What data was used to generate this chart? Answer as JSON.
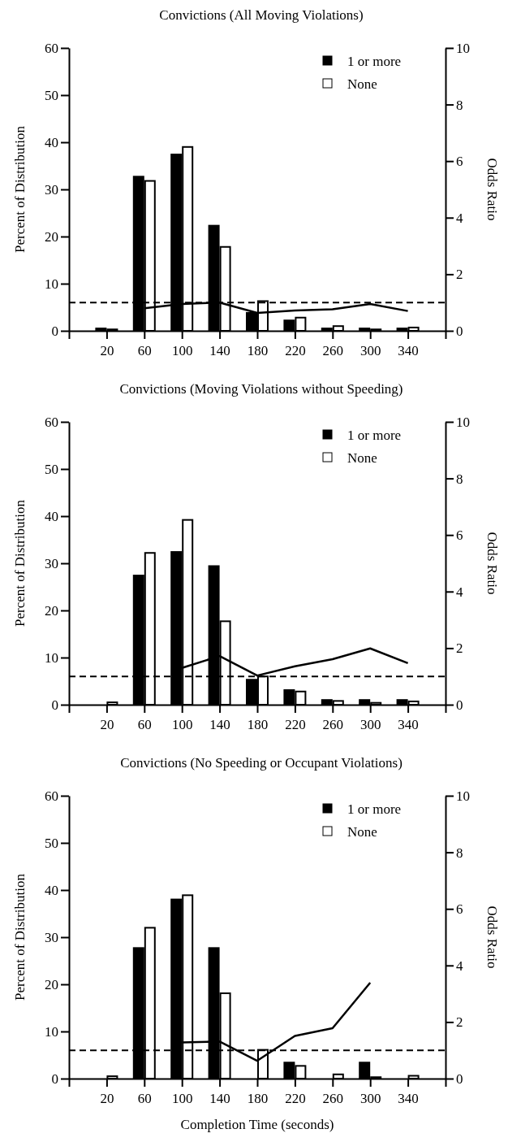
{
  "chart_data": [
    {
      "type": "bar",
      "title": "Convictions (All Moving Violations)",
      "ylabel": "Percent of Distribution",
      "y2label": "Odds Ratio",
      "categories": [
        "20",
        "60",
        "100",
        "140",
        "180",
        "220",
        "260",
        "300",
        "340"
      ],
      "series": [
        {
          "name": "1 or more",
          "color": "#000000",
          "values": [
            0.5,
            32.7,
            37.4,
            22.3,
            3.8,
            2.2,
            0.5,
            0.5,
            0.5
          ]
        },
        {
          "name": "None",
          "color": "#ffffff",
          "values": [
            0.3,
            31.8,
            39,
            17.8,
            6.3,
            2.8,
            1.0,
            0.3,
            0.7
          ]
        },
        {
          "type": "line",
          "axis": "y2",
          "color": "#000000",
          "values": [
            null,
            0.8,
            0.95,
            1.0,
            0.63,
            0.72,
            0.76,
            0.95,
            0.7
          ]
        }
      ],
      "ylim": [
        0,
        60
      ],
      "yticks": [
        0,
        10,
        20,
        30,
        40,
        50,
        60
      ],
      "y2lim": [
        0,
        10
      ],
      "y2ticks": [
        0,
        2,
        4,
        6,
        8,
        10
      ],
      "ref_lines": [
        {
          "axis": "y2",
          "value": 1,
          "label": null,
          "color": "#000000",
          "line_style": "dashed"
        }
      ],
      "legend": "top right",
      "grid": false,
      "marker": "none"
    },
    {
      "type": "bar",
      "title": "Convictions (Moving Violations without Speeding)",
      "ylabel": "Percent of Distribution",
      "y2label": "Odds Ratio",
      "categories": [
        "20",
        "60",
        "100",
        "140",
        "180",
        "220",
        "260",
        "300",
        "340"
      ],
      "series": [
        {
          "name": "1 or more",
          "color": "#000000",
          "values": [
            0,
            27.4,
            32.4,
            29.4,
            5.3,
            3.1,
            1.0,
            1.0,
            1.0
          ]
        },
        {
          "name": "None",
          "color": "#ffffff",
          "values": [
            0.5,
            32.2,
            39.2,
            17.7,
            6.0,
            2.8,
            0.8,
            0.4,
            0.7
          ]
        },
        {
          "type": "line",
          "axis": "y2",
          "color": "#000000",
          "values": [
            null,
            null,
            1.3,
            1.72,
            1.03,
            1.36,
            1.61,
            1.99,
            1.47
          ]
        }
      ],
      "ylim": [
        0,
        60
      ],
      "yticks": [
        0,
        10,
        20,
        30,
        40,
        50,
        60
      ],
      "y2lim": [
        0,
        10
      ],
      "y2ticks": [
        0,
        2,
        4,
        6,
        8,
        10
      ],
      "ref_lines": [
        {
          "axis": "y2",
          "value": 1,
          "label": null,
          "color": "#000000",
          "line_style": "dashed"
        }
      ],
      "legend": "top right",
      "grid": false,
      "marker": "none"
    },
    {
      "type": "bar",
      "title": "Convictions (No Speeding or Occupant Violations)",
      "xlabel": "Completion Time (seconds)",
      "ylabel": "Percent of Distribution",
      "y2label": "Odds Ratio",
      "categories": [
        "20",
        "60",
        "100",
        "140",
        "180",
        "220",
        "260",
        "300",
        "340"
      ],
      "series": [
        {
          "name": "1 or more",
          "color": "#000000",
          "values": [
            0,
            27.7,
            38,
            27.7,
            0,
            3.4,
            0,
            3.4,
            0
          ]
        },
        {
          "name": "None",
          "color": "#ffffff",
          "values": [
            0.5,
            32,
            38.9,
            18.1,
            6.1,
            2.7,
            0.9,
            0.3,
            0.6
          ]
        },
        {
          "type": "line",
          "axis": "y2",
          "color": "#000000",
          "values": [
            null,
            null,
            1.28,
            1.31,
            0.63,
            1.51,
            1.78,
            3.39,
            null
          ]
        }
      ],
      "ylim": [
        0,
        60
      ],
      "yticks": [
        0,
        10,
        20,
        30,
        40,
        50,
        60
      ],
      "y2lim": [
        0,
        10
      ],
      "y2ticks": [
        0,
        2,
        4,
        6,
        8,
        10
      ],
      "ref_lines": [
        {
          "axis": "y2",
          "value": 1,
          "label": null,
          "color": "#000000",
          "line_style": "dashed"
        }
      ],
      "legend": "top right",
      "grid": false,
      "marker": "none"
    }
  ]
}
